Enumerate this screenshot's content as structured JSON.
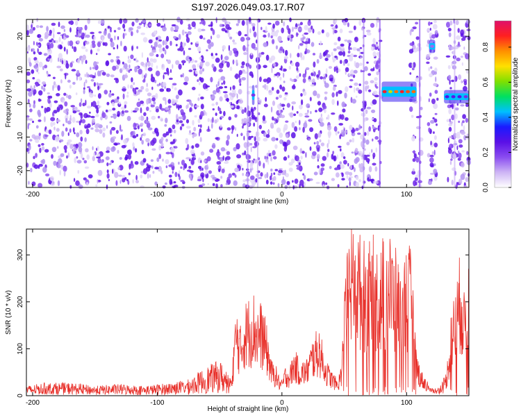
{
  "figure": {
    "title": "S197.2026.049.03.17.R07"
  },
  "colors": {
    "snr_line": "#e8302a",
    "colormap": [
      "#ffffff",
      "#cdb4f5",
      "#8a4cf0",
      "#5a10e6",
      "#1a1aff",
      "#00c0ff",
      "#00e060",
      "#80e000",
      "#ffe000",
      "#ff9000",
      "#ff2020",
      "#e0106a"
    ]
  },
  "chart_data": [
    {
      "type": "heatmap",
      "panel": "spectrogram",
      "xlabel": "Height of straight line (km)",
      "ylabel": "Frequency (Hz)",
      "xlim": [
        -205,
        150
      ],
      "ylim": [
        -25,
        25
      ],
      "xticks": [
        -200,
        -100,
        0,
        100
      ],
      "yticks": [
        -20,
        -10,
        0,
        10,
        20
      ],
      "colorbar": {
        "label": "Normalized spectral amplitude",
        "range": [
          0,
          0.95
        ],
        "ticks": [
          0.0,
          0.2,
          0.4,
          0.6,
          0.8
        ]
      },
      "gaps_km": [
        [
          80,
          103
        ],
        [
          112,
          117
        ],
        [
          125,
          133
        ]
      ],
      "features": [
        {
          "x_km": [
            -24,
            -22
          ],
          "freq_hz": [
            1,
            4
          ],
          "amplitude": 0.25
        },
        {
          "x_km": [
            80,
            108
          ],
          "freq_hz": [
            2,
            5
          ],
          "amplitude": 0.95
        },
        {
          "x_km": [
            118,
            123
          ],
          "freq_hz": [
            16,
            18
          ],
          "amplitude": 0.2
        },
        {
          "x_km": [
            130,
            150
          ],
          "freq_hz": [
            1,
            3
          ],
          "amplitude": 0.3
        }
      ],
      "background_amplitude": [
        0.0,
        0.05
      ]
    },
    {
      "type": "line",
      "panel": "snr",
      "xlabel": "Height of straight line (km)",
      "ylabel": "SNR (10 * v/v)",
      "xlim": [
        -205,
        150
      ],
      "ylim": [
        0,
        355
      ],
      "xticks": [
        -200,
        -100,
        0,
        100
      ],
      "yticks": [
        0,
        100,
        200,
        300
      ],
      "series": [
        {
          "x": [
            -205,
            -190,
            -170,
            -150,
            -130,
            -110,
            -90,
            -75,
            -68,
            -60,
            -50,
            -45,
            -40,
            -38,
            -36,
            -33,
            -30,
            -26,
            -23,
            -20,
            -16,
            -12,
            -8,
            -5,
            -2,
            0,
            3,
            6,
            10,
            15,
            20,
            25,
            30,
            35,
            40,
            45,
            48,
            50,
            53,
            56,
            60,
            65,
            70,
            75,
            78,
            80,
            84,
            88,
            92,
            96,
            100,
            104,
            108,
            112,
            118,
            124,
            128,
            132,
            136,
            140,
            144,
            146,
            150
          ],
          "y": [
            15,
            20,
            20,
            15,
            18,
            15,
            20,
            25,
            35,
            45,
            55,
            40,
            45,
            120,
            140,
            110,
            150,
            160,
            170,
            150,
            150,
            110,
            55,
            50,
            30,
            25,
            50,
            45,
            75,
            55,
            60,
            95,
            110,
            60,
            40,
            25,
            60,
            155,
            250,
            280,
            270,
            250,
            245,
            260,
            220,
            250,
            270,
            250,
            230,
            185,
            250,
            230,
            70,
            40,
            20,
            10,
            20,
            40,
            140,
            180,
            250,
            160,
            270
          ]
        }
      ]
    }
  ]
}
